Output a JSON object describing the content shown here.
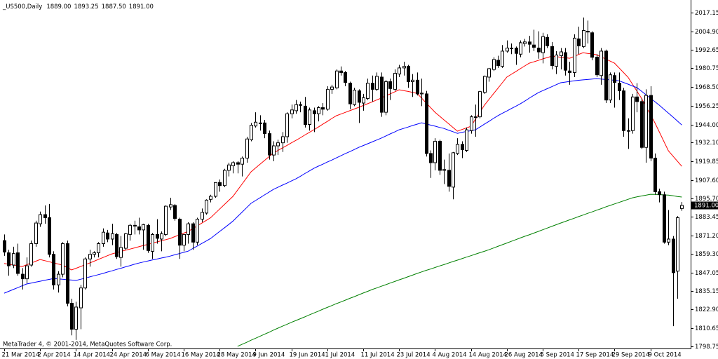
{
  "chart_data": {
    "type": "candlestick",
    "header": {
      "symbol": "_US500,Daily",
      "ohlc": [
        {
          "value": 1889,
          "label": "1889.00"
        },
        {
          "value": 1893.25,
          "label": "1893.25"
        },
        {
          "value": 1887.5,
          "label": "1887.50"
        },
        {
          "value": 1891,
          "label": "1891.00"
        }
      ]
    },
    "footer": "MetaTrader 4, © 2001-2014, MetaQuotes Software Corp.",
    "current_price": {
      "value": 1891,
      "label": "1891.00"
    },
    "categories": [
      "21 Mar 2014",
      null,
      null,
      null,
      null,
      null,
      null,
      null,
      "2 Apr 2014",
      null,
      null,
      null,
      null,
      null,
      null,
      null,
      "14 Apr 2014",
      null,
      null,
      null,
      null,
      null,
      null,
      null,
      "24 Apr 2014",
      null,
      null,
      null,
      null,
      null,
      null,
      null,
      "6 May 2014",
      null,
      null,
      null,
      null,
      null,
      null,
      null,
      "16 May 2014",
      null,
      null,
      null,
      null,
      null,
      null,
      null,
      "28 May 2014",
      null,
      null,
      null,
      null,
      null,
      null,
      null,
      "9 Jun 2014",
      null,
      null,
      null,
      null,
      null,
      null,
      null,
      "19 Jun 2014",
      null,
      null,
      null,
      null,
      null,
      null,
      null,
      "1 Jul 2014",
      null,
      null,
      null,
      null,
      null,
      null,
      null,
      "11 Jul 2014",
      null,
      null,
      null,
      null,
      null,
      null,
      null,
      "23 Jul 2014",
      null,
      null,
      null,
      null,
      null,
      null,
      null,
      "4 Aug 2014",
      null,
      null,
      null,
      null,
      null,
      null,
      null,
      "14 Aug 2014",
      null,
      null,
      null,
      null,
      null,
      null,
      null,
      "26 Aug 2014",
      null,
      null,
      null,
      null,
      null,
      null,
      null,
      "5 Sep 2014",
      null,
      null,
      null,
      null,
      null,
      null,
      null,
      "17 Sep 2014",
      null,
      null,
      null,
      null,
      null,
      null,
      null,
      "29 Sep 2014",
      null,
      null,
      null,
      null,
      null,
      null,
      null,
      "9 Oct 2014",
      null,
      null,
      null,
      null,
      null,
      null,
      null
    ],
    "open": [
      1868,
      1860,
      1852,
      1860,
      1846,
      1843,
      1852,
      1866,
      1879,
      1885,
      1883,
      1859,
      1839,
      1846,
      1866,
      1827,
      1810,
      1824,
      1837,
      1856,
      1859,
      1860,
      1866,
      1873,
      1869,
      1872,
      1857,
      1863,
      1872,
      1878,
      1877,
      1875,
      1878,
      1861,
      1872,
      1869,
      1872,
      1890,
      1891,
      1882,
      1865,
      1872,
      1879,
      1867,
      1882,
      1886,
      1895,
      1897,
      1906,
      1904,
      1914,
      1917,
      1919,
      1918,
      1922,
      1934,
      1943,
      1945,
      1945,
      1938,
      1924,
      1930,
      1932,
      1936,
      1951,
      1953,
      1957,
      1956,
      1944,
      1953,
      1951,
      1955,
      1954,
      1967,
      1968,
      1979,
      1978,
      1971,
      1957,
      1966,
      1958,
      1961,
      1971,
      1967,
      1975,
      1952,
      1972,
      1967,
      1977,
      1981,
      1982,
      1972,
      1973,
      1964,
      1964,
      1925,
      1919,
      1933,
      1914,
      1914,
      1903,
      1925,
      1931,
      1927,
      1940,
      1949,
      1949,
      1965,
      1975,
      1980,
      1986,
      1982,
      1992,
      1994,
      1994,
      1990,
      1997,
      1998,
      1996,
      1994,
      1991,
      2001,
      1995,
      1982,
      1989,
      1991,
      1979,
      1978,
      2000,
      1995,
      2005,
      2004,
      1988,
      1976,
      1992,
      1960,
      1976,
      1971,
      1966,
      1940,
      1940,
      1962,
      1959,
      1929,
      1963,
      1922,
      1900,
      1898,
      1867,
      1869,
      1848,
      1889
    ],
    "high": [
      1872,
      1862,
      1864,
      1866,
      1850,
      1857,
      1868,
      1881,
      1887,
      1891,
      1892,
      1861,
      1848,
      1867,
      1868,
      1830,
      1828,
      1839,
      1857,
      1862,
      1861,
      1867,
      1876,
      1875,
      1879,
      1873,
      1871,
      1873,
      1879,
      1881,
      1883,
      1879,
      1879,
      1873,
      1882,
      1874,
      1891,
      1896,
      1892,
      1883,
      1872,
      1880,
      1880,
      1883,
      1889,
      1895,
      1898,
      1906,
      1908,
      1915,
      1919,
      1920,
      1920,
      1923,
      1936,
      1945,
      1952,
      1950,
      1947,
      1940,
      1933,
      1934,
      1939,
      1952,
      1957,
      1960,
      1959,
      1962,
      1955,
      1955,
      1956,
      1958,
      1969,
      1970,
      1980,
      1982,
      1979,
      1972,
      1968,
      1967,
      1964,
      1974,
      1976,
      1978,
      1978,
      1973,
      1974,
      1980,
      1983,
      1985,
      1983,
      1977,
      1978,
      1974,
      1966,
      1927,
      1935,
      1934,
      1921,
      1925,
      1926,
      1935,
      1933,
      1942,
      1950,
      1957,
      1966,
      1976,
      1981,
      1988,
      1989,
      1996,
      1999,
      1997,
      1995,
      1999,
      2000,
      2002,
      2006,
      2005,
      2004,
      2003,
      1998,
      1992,
      1994,
      1994,
      1985,
      2003,
      2008,
      2014,
      2012,
      2005,
      1990,
      1994,
      1993,
      1978,
      1978,
      1978,
      1968,
      1948,
      1964,
      1971,
      1961,
      1967,
      1969,
      1925,
      1902,
      1900,
      1888,
      1871,
      1884,
      1893.25
    ],
    "low": [
      1858,
      1845,
      1850,
      1845,
      1836,
      1840,
      1851,
      1864,
      1877,
      1879,
      1857,
      1836,
      1834,
      1844,
      1825,
      1806,
      1803,
      1810,
      1836,
      1851,
      1857,
      1857,
      1864,
      1867,
      1865,
      1856,
      1851,
      1862,
      1868,
      1872,
      1872,
      1862,
      1860,
      1856,
      1866,
      1861,
      1871,
      1888,
      1881,
      1856,
      1861,
      1866,
      1862,
      1865,
      1880,
      1885,
      1893,
      1896,
      1900,
      1903,
      1910,
      1912,
      1912,
      1910,
      1919,
      1933,
      1942,
      1940,
      1935,
      1921,
      1920,
      1924,
      1926,
      1932,
      1948,
      1951,
      1952,
      1942,
      1940,
      1939,
      1946,
      1950,
      1953,
      1964,
      1967,
      1976,
      1969,
      1954,
      1956,
      1945,
      1953,
      1960,
      1959,
      1966,
      1949,
      1950,
      1960,
      1966,
      1975,
      1976,
      1968,
      1962,
      1963,
      1956,
      1923,
      1909,
      1914,
      1911,
      1905,
      1900,
      1895,
      1924,
      1922,
      1926,
      1938,
      1936,
      1948,
      1964,
      1972,
      1979,
      1981,
      1981,
      1991,
      1990,
      1983,
      1988,
      1995,
      1991,
      1992,
      1987,
      1984,
      1994,
      1980,
      1977,
      1980,
      1976,
      1970,
      1975,
      1990,
      1994,
      1997,
      1986,
      1975,
      1970,
      1958,
      1958,
      1955,
      1960,
      1936,
      1928,
      1938,
      1952,
      1928,
      1919,
      1920,
      1898,
      1893,
      1866,
      1865,
      1812,
      1830,
      1887.5
    ],
    "close": [
      1860.5,
      1851.5,
      1859.5,
      1846.5,
      1843,
      1851.5,
      1866,
      1879.5,
      1885,
      1883,
      1859,
      1839,
      1846,
      1866,
      1827,
      1810,
      1824.5,
      1837,
      1856,
      1859,
      1860,
      1866,
      1873.5,
      1869,
      1872.5,
      1857.5,
      1863.5,
      1872.5,
      1878,
      1877.5,
      1875,
      1878.5,
      1861.5,
      1872,
      1869.5,
      1872.5,
      1890.5,
      1891.5,
      1882.5,
      1865,
      1872,
      1879,
      1867,
      1882,
      1886.5,
      1894.5,
      1897,
      1906,
      1904,
      1914,
      1917.5,
      1919,
      1918,
      1922,
      1934.5,
      1943.5,
      1945.5,
      1945,
      1938,
      1924,
      1930,
      1932,
      1936,
      1951,
      1953.5,
      1957,
      1956.5,
      1944,
      1953.5,
      1951,
      1955,
      1954,
      1967,
      1968.5,
      1979,
      1978,
      1971.5,
      1957.5,
      1966.5,
      1958.5,
      1961.5,
      1971,
      1967,
      1975.5,
      1952,
      1972,
      1967.5,
      1977.5,
      1981,
      1982,
      1972,
      1973,
      1964,
      1964.5,
      1925,
      1919,
      1933,
      1914,
      1914.5,
      1903.5,
      1925.5,
      1931,
      1927.5,
      1940.5,
      1949,
      1949,
      1965.5,
      1975.5,
      1980.5,
      1986.5,
      1982.5,
      1992,
      1994,
      1994,
      1990.5,
      1997.5,
      1998,
      1996.5,
      1994.5,
      1991.5,
      2001.5,
      1995.5,
      1982.5,
      1989.5,
      1991.5,
      1979.5,
      1978,
      2000.5,
      1995.5,
      2005.5,
      2004.5,
      1988,
      1976.5,
      1992,
      1960,
      1976.5,
      1971.5,
      1966,
      1940,
      1940,
      1962,
      1959,
      1929,
      1963,
      1922,
      1900,
      1898,
      1867,
      1869,
      1847,
      1883,
      1891
    ],
    "up_color": "#ffffff",
    "down_color": "#000000",
    "moving_averages": [
      {
        "color": "#ff0000",
        "values": [
          1853,
          1852.5,
          1852,
          1851.5,
          1851,
          1852.2,
          1853.3,
          1854.5,
          1855.6,
          1854.9,
          1854.2,
          1853.4,
          1852.7,
          1852,
          1850.4,
          1848.8,
          1849.9,
          1851,
          1852.2,
          1853.3,
          1854.5,
          1855.7,
          1856.9,
          1858.1,
          1859.3,
          1860.1,
          1860.9,
          1861.7,
          1862.4,
          1863.2,
          1864,
          1864.8,
          1865.5,
          1866.3,
          1867.1,
          1867.9,
          1868.6,
          1869.4,
          1870.6,
          1871.7,
          1872.9,
          1874,
          1875.8,
          1877.6,
          1879.4,
          1881.2,
          1883,
          1885.8,
          1888.6,
          1891.4,
          1894.2,
          1897,
          1901,
          1905,
          1909,
          1913,
          1915.5,
          1918,
          1920.4,
          1922.9,
          1925.4,
          1927,
          1928.7,
          1930.3,
          1932,
          1933.6,
          1935.3,
          1937.1,
          1938.8,
          1940.5,
          1942.3,
          1944.2,
          1946,
          1947.9,
          1949.7,
          1950.8,
          1951.9,
          1953,
          1954.1,
          1955.2,
          1956.4,
          1957.6,
          1958.8,
          1960,
          1961.2,
          1962.6,
          1964,
          1965.3,
          1966.7,
          1966.1,
          1965.6,
          1965,
          1964.4,
          1961.3,
          1958.2,
          1955.1,
          1952,
          1949.5,
          1947,
          1944.6,
          1942.1,
          1939.6,
          1940.7,
          1941.7,
          1942.8,
          1947.4,
          1952,
          1956.6,
          1960.3,
          1964,
          1967.6,
          1971.3,
          1975,
          1976.8,
          1978.6,
          1980.5,
          1982.3,
          1984.1,
          1985,
          1985.9,
          1986.9,
          1987.8,
          1988.7,
          1988.4,
          1988,
          1987.7,
          1987.3,
          1988.5,
          1989.8,
          1991,
          1990.5,
          1990.1,
          1989.6,
          1988.2,
          1986.9,
          1985.5,
          1984.1,
          1981.1,
          1978,
          1975,
          1970.4,
          1965.8,
          1961.2,
          1955.8,
          1950.5,
          1945.1,
          1939,
          1932.9,
          1926.8,
          1923.4,
          1920,
          1916.6
        ]
      },
      {
        "color": "#0000ff",
        "values": [
          1833.6,
          1834.8,
          1836,
          1837.2,
          1838.4,
          1839.6,
          1840.2,
          1840.8,
          1841.4,
          1842,
          1842.6,
          1843.2,
          1842.9,
          1842.7,
          1842.4,
          1842.2,
          1841.9,
          1842.7,
          1843.4,
          1844.2,
          1845,
          1845.7,
          1846.5,
          1847.4,
          1848.2,
          1849.1,
          1849.9,
          1850.8,
          1851.6,
          1852.5,
          1853.3,
          1854,
          1854.6,
          1855.3,
          1855.9,
          1856.6,
          1857.2,
          1857.9,
          1858.7,
          1859.5,
          1860.3,
          1861.1,
          1862.8,
          1864.4,
          1866.1,
          1867.7,
          1869.4,
          1871.7,
          1874,
          1876.2,
          1878.5,
          1880.8,
          1883.7,
          1886.6,
          1889.5,
          1892.4,
          1894.2,
          1896,
          1897.9,
          1899.7,
          1901.5,
          1902.9,
          1904.3,
          1905.6,
          1907,
          1908.4,
          1910.1,
          1911.9,
          1913.6,
          1915.3,
          1916.7,
          1918,
          1919.4,
          1920.7,
          1922.1,
          1923.5,
          1924.9,
          1926.2,
          1927.6,
          1929,
          1930.2,
          1931.4,
          1932.6,
          1933.8,
          1935,
          1936.4,
          1937.8,
          1939.1,
          1940.5,
          1941.4,
          1942.3,
          1943.3,
          1944.2,
          1945.1,
          1944.4,
          1943.6,
          1942.9,
          1942.1,
          1941.4,
          1940.3,
          1939.3,
          1938.2,
          1938.8,
          1939.4,
          1939.9,
          1940.5,
          1942.3,
          1944.2,
          1946,
          1947.9,
          1949.7,
          1951.3,
          1952.8,
          1954.4,
          1955.9,
          1957.5,
          1959.3,
          1961.2,
          1963,
          1964.8,
          1966.1,
          1967.4,
          1968.7,
          1970,
          1971.3,
          1971.7,
          1972.2,
          1972.6,
          1972.9,
          1973.2,
          1973.4,
          1973.7,
          1974,
          1973.7,
          1973.4,
          1973.2,
          1972.9,
          1972.6,
          1971.5,
          1970.4,
          1969.2,
          1968.1,
          1965.8,
          1963.5,
          1961.2,
          1958.9,
          1956.6,
          1954,
          1951.5,
          1948.9,
          1946.3,
          1943.7
        ]
      },
      {
        "color": "#008000",
        "values": [
          null,
          null,
          null,
          null,
          null,
          null,
          null,
          null,
          null,
          null,
          null,
          null,
          null,
          null,
          null,
          null,
          null,
          null,
          null,
          null,
          null,
          null,
          null,
          null,
          null,
          null,
          null,
          null,
          null,
          null,
          null,
          null,
          null,
          null,
          null,
          null,
          null,
          null,
          null,
          null,
          null,
          null,
          null,
          null,
          null,
          null,
          null,
          null,
          null,
          null,
          null,
          null,
          1798.8,
          1800.1,
          1801.4,
          1802.8,
          1804.1,
          1805.4,
          1806.7,
          1808,
          1809.4,
          1810.7,
          1812,
          1813.2,
          1814.5,
          1815.7,
          1816.9,
          1818.1,
          1819.4,
          1820.6,
          1821.8,
          1823.1,
          1824.3,
          1825.5,
          1826.7,
          1827.8,
          1829,
          1830.2,
          1831.3,
          1832.5,
          1833.7,
          1834.8,
          1836,
          1837,
          1838.1,
          1839.1,
          1840.2,
          1841.2,
          1842.3,
          1843.3,
          1844.4,
          1845.4,
          1846.5,
          1847.5,
          1848.5,
          1849.4,
          1850.4,
          1851.4,
          1852.3,
          1853.3,
          1854.3,
          1855.2,
          1856.2,
          1857.2,
          1858.1,
          1859.1,
          1860.1,
          1861,
          1862,
          1863.1,
          1864.2,
          1865.3,
          1866.4,
          1867.5,
          1868.6,
          1869.7,
          1870.8,
          1871.8,
          1872.9,
          1874,
          1875.1,
          1876.2,
          1877.3,
          1878.4,
          1879.5,
          1880.5,
          1881.6,
          1882.6,
          1883.7,
          1884.7,
          1885.8,
          1886.8,
          1887.9,
          1888.9,
          1890,
          1891,
          1892,
          1893,
          1894,
          1895,
          1896,
          1896.6,
          1897.2,
          1897.7,
          1898.3,
          1898.2,
          1898.1,
          1897.9,
          1897.8,
          1897.4,
          1896.9,
          1896.5
        ]
      }
    ],
    "ylim": [
      1797.4,
      2022.7
    ],
    "yticks": [
      2017.15,
      {
        "value": 2004.9,
        "label": "2004.90"
      },
      1992.65,
      1980.75,
      {
        "value": 1968.5,
        "label": "1968.50"
      },
      1956.25,
      {
        "value": 1944,
        "label": "1944.00"
      },
      {
        "value": 1932.1,
        "label": "1932.10"
      },
      1919.85,
      {
        "value": 1907.6,
        "label": "1907.60"
      },
      {
        "value": 1895.7,
        "label": "1895.70"
      },
      1883.45,
      {
        "value": 1871.2,
        "label": "1871.20"
      },
      {
        "value": 1859.3,
        "label": "1859.30"
      },
      1847.05,
      1835.15,
      {
        "value": 1822.9,
        "label": "1822.90"
      },
      1810.65,
      1798.75
    ]
  }
}
